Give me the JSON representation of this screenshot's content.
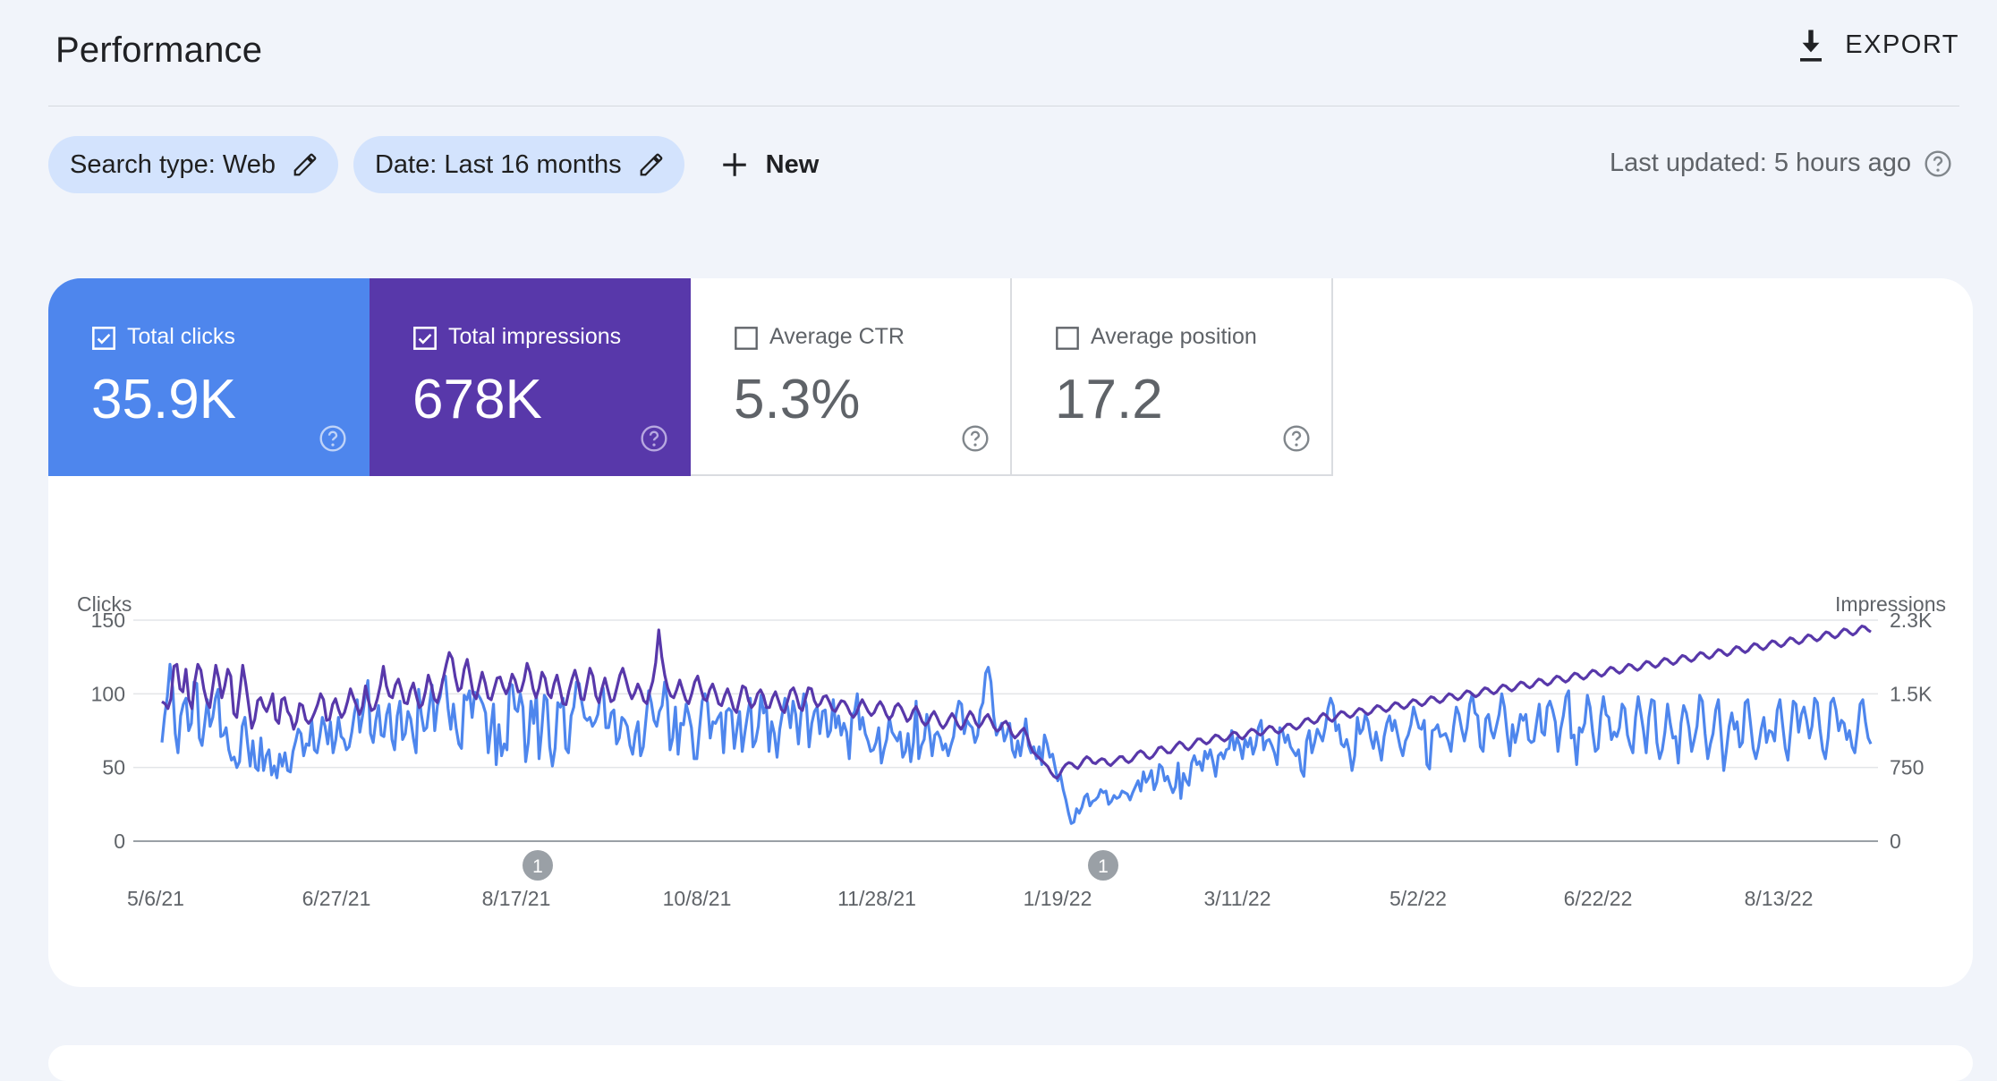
{
  "header": {
    "title": "Performance",
    "export_label": "EXPORT"
  },
  "filters": {
    "chips": [
      {
        "label": "Search type: Web"
      },
      {
        "label": "Date: Last 16 months"
      }
    ],
    "new_label": "New",
    "last_updated": "Last updated: 5 hours ago"
  },
  "metrics": [
    {
      "label": "Total clicks",
      "value": "35.9K",
      "checked": true,
      "color": "#4e86ed"
    },
    {
      "label": "Total impressions",
      "value": "678K",
      "checked": true,
      "color": "#5838aa"
    },
    {
      "label": "Average CTR",
      "value": "5.3%",
      "checked": false
    },
    {
      "label": "Average position",
      "value": "17.2",
      "checked": false
    }
  ],
  "chart_data": {
    "type": "line",
    "left_axis_label": "Clicks",
    "right_axis_label": "Impressions",
    "left_ticks": [
      "150",
      "100",
      "50",
      "0"
    ],
    "right_ticks": [
      "2.3K",
      "1.5K",
      "750",
      "0"
    ],
    "ylim_left": [
      0,
      150
    ],
    "ylim_right": [
      0,
      2250
    ],
    "x_tick_labels": [
      "5/6/21",
      "6/27/21",
      "8/17/21",
      "10/8/21",
      "11/28/21",
      "1/19/22",
      "3/11/22",
      "5/2/22",
      "6/22/22",
      "8/13/22"
    ],
    "grid": true,
    "annotations": [
      {
        "x": "8/17/21",
        "label": "1"
      },
      {
        "x": "1/19/22",
        "label": "1"
      }
    ],
    "series": [
      {
        "name": "Clicks",
        "axis": "left",
        "color": "#4e86ed",
        "x_start": 0,
        "x_step": 1,
        "values": [
          67,
          85,
          98,
          120,
          104,
          73,
          60,
          85,
          93,
          97,
          75,
          80,
          108,
          107,
          70,
          65,
          80,
          96,
          78,
          84,
          97,
          103,
          71,
          72,
          77,
          62,
          55,
          57,
          50,
          54,
          78,
          84,
          67,
          51,
          68,
          50,
          48,
          70,
          48,
          58,
          62,
          45,
          51,
          43,
          59,
          51,
          60,
          48,
          47,
          61,
          68,
          76,
          73,
          58,
          66,
          65,
          82,
          62,
          60,
          71,
          84,
          78,
          66,
          81,
          60,
          69,
          84,
          71,
          69,
          62,
          64,
          74,
          87,
          96,
          74,
          85,
          98,
          109,
          73,
          67,
          82,
          92,
          72,
          71,
          86,
          93,
          69,
          62,
          85,
          95,
          69,
          73,
          88,
          83,
          70,
          60,
          103,
          86,
          75,
          77,
          92,
          106,
          75,
          92,
          98,
          110,
          112,
          90,
          76,
          93,
          77,
          66,
          63,
          99,
          96,
          102,
          84,
          101,
          100,
          97,
          93,
          87,
          60,
          77,
          93,
          52,
          79,
          58,
          66,
          62,
          107,
          106,
          90,
          88,
          100,
          91,
          54,
          67,
          95,
          80,
          100,
          56,
          75,
          99,
          96,
          64,
          51,
          63,
          94,
          91,
          97,
          63,
          60,
          85,
          91,
          108,
          107,
          94,
          84,
          82,
          84,
          78,
          81,
          86,
          100,
          104,
          77,
          77,
          87,
          89,
          66,
          70,
          84,
          82,
          78,
          65,
          59,
          73,
          81,
          58,
          64,
          83,
          102,
          94,
          82,
          78,
          88,
          92,
          108,
          95,
          62,
          70,
          91,
          59,
          80,
          79,
          93,
          86,
          77,
          56,
          56,
          76,
          95,
          100,
          94,
          70,
          81,
          80,
          84,
          87,
          60,
          88,
          90,
          88,
          63,
          76,
          88,
          61,
          74,
          86,
          97,
          64,
          68,
          78,
          99,
          87,
          92,
          61,
          81,
          73,
          57,
          76,
          87,
          97,
          91,
          77,
          95,
          86,
          66,
          87,
          100,
          92,
          64,
          80,
          88,
          91,
          73,
          88,
          89,
          71,
          75,
          96,
          77,
          85,
          72,
          80,
          74,
          56,
          85,
          88,
          100,
          76,
          84,
          73,
          68,
          61,
          62,
          67,
          77,
          53,
          62,
          69,
          84,
          74,
          71,
          68,
          74,
          57,
          61,
          73,
          54,
          67,
          95,
          56,
          65,
          69,
          86,
          74,
          58,
          72,
          74,
          70,
          62,
          66,
          58,
          65,
          71,
          86,
          95,
          93,
          73,
          82,
          79,
          77,
          67,
          72,
          89,
          94,
          114,
          118,
          108,
          85,
          72,
          76,
          80,
          68,
          73,
          80,
          62,
          57,
          68,
          58,
          70,
          83,
          65,
          60,
          64,
          56,
          64,
          52,
          72,
          66,
          57,
          59,
          50,
          41,
          45,
          35,
          28,
          19,
          12,
          13,
          22,
          19,
          23,
          30,
          32,
          24,
          27,
          28,
          30,
          35,
          33,
          34,
          25,
          27,
          31,
          29,
          30,
          34,
          33,
          32,
          28,
          33,
          37,
          41,
          34,
          47,
          40,
          43,
          48,
          35,
          40,
          52,
          50,
          41,
          44,
          38,
          33,
          37,
          53,
          29,
          46,
          41,
          38,
          53,
          58,
          52,
          54,
          48,
          61,
          56,
          62,
          54,
          44,
          58,
          60,
          56,
          62,
          63,
          75,
          62,
          70,
          65,
          56,
          69,
          64,
          70,
          59,
          65,
          77,
          82,
          62,
          68,
          69,
          65,
          60,
          52,
          77,
          75,
          67,
          72,
          64,
          61,
          58,
          62,
          48,
          44,
          68,
          75,
          60,
          67,
          76,
          72,
          68,
          77,
          90,
          97,
          92,
          75,
          79,
          66,
          64,
          69,
          61,
          48,
          58,
          84,
          73,
          76,
          86,
          81,
          70,
          63,
          74,
          65,
          55,
          71,
          80,
          85,
          75,
          82,
          73,
          64,
          58,
          68,
          72,
          79,
          91,
          84,
          77,
          76,
          82,
          52,
          49,
          75,
          76,
          79,
          71,
          72,
          73,
          68,
          61,
          78,
          91,
          86,
          76,
          68,
          77,
          93,
          100,
          87,
          85,
          64,
          61,
          83,
          86,
          75,
          70,
          78,
          86,
          100,
          91,
          73,
          58,
          79,
          67,
          75,
          86,
          82,
          86,
          69,
          67,
          68,
          81,
          93,
          74,
          72,
          91,
          95,
          89,
          81,
          61,
          76,
          85,
          98,
          102,
          70,
          72,
          52,
          77,
          74,
          80,
          99,
          91,
          74,
          61,
          63,
          85,
          98,
          86,
          84,
          69,
          74,
          71,
          77,
          93,
          90,
          72,
          65,
          60,
          84,
          98,
          87,
          75,
          60,
          84,
          96,
          95,
          67,
          56,
          62,
          74,
          93,
          80,
          70,
          71,
          53,
          80,
          92,
          87,
          77,
          61,
          69,
          78,
          99,
          95,
          73,
          56,
          66,
          73,
          89,
          96,
          73,
          48,
          62,
          78,
          87,
          76,
          81,
          64,
          67,
          94,
          96,
          80,
          63,
          56,
          64,
          76,
          84,
          67,
          75,
          74,
          68,
          89,
          96,
          79,
          63,
          55,
          75,
          95,
          93,
          74,
          86,
          91,
          82,
          70,
          78,
          97,
          94,
          76,
          62,
          56,
          70,
          94,
          97,
          89,
          75,
          82,
          80,
          69,
          75,
          64,
          60,
          75,
          93,
          96,
          81,
          70,
          66
        ]
      },
      {
        "name": "Impressions",
        "axis": "right",
        "color": "#5838aa",
        "x_start": 0,
        "x_step": 1,
        "values": [
          1420,
          1400,
          1350,
          1450,
          1780,
          1800,
          1550,
          1520,
          1750,
          1440,
          1350,
          1630,
          1800,
          1740,
          1550,
          1420,
          1360,
          1580,
          1790,
          1650,
          1460,
          1580,
          1750,
          1680,
          1300,
          1260,
          1520,
          1790,
          1600,
          1380,
          1150,
          1240,
          1430,
          1460,
          1370,
          1320,
          1400,
          1500,
          1240,
          1200,
          1440,
          1460,
          1320,
          1270,
          1140,
          1220,
          1400,
          1380,
          1240,
          1200,
          1240,
          1310,
          1390,
          1500,
          1440,
          1230,
          1240,
          1390,
          1450,
          1340,
          1260,
          1310,
          1420,
          1550,
          1460,
          1380,
          1290,
          1370,
          1580,
          1430,
          1330,
          1350,
          1450,
          1590,
          1780,
          1580,
          1480,
          1460,
          1590,
          1650,
          1540,
          1410,
          1400,
          1530,
          1610,
          1480,
          1360,
          1390,
          1520,
          1690,
          1590,
          1450,
          1410,
          1520,
          1660,
          1800,
          1920,
          1860,
          1670,
          1530,
          1560,
          1750,
          1850,
          1680,
          1500,
          1450,
          1590,
          1720,
          1610,
          1460,
          1440,
          1550,
          1660,
          1670,
          1570,
          1500,
          1570,
          1700,
          1640,
          1520,
          1530,
          1640,
          1810,
          1720,
          1550,
          1460,
          1560,
          1720,
          1660,
          1500,
          1460,
          1600,
          1690,
          1550,
          1400,
          1390,
          1530,
          1650,
          1740,
          1620,
          1450,
          1440,
          1600,
          1760,
          1680,
          1480,
          1410,
          1550,
          1660,
          1540,
          1420,
          1440,
          1560,
          1690,
          1760,
          1650,
          1530,
          1450,
          1510,
          1600,
          1530,
          1430,
          1400,
          1520,
          1630,
          1820,
          2150,
          1880,
          1690,
          1560,
          1480,
          1460,
          1540,
          1640,
          1540,
          1440,
          1400,
          1500,
          1620,
          1680,
          1560,
          1450,
          1430,
          1540,
          1600,
          1510,
          1400,
          1380,
          1480,
          1550,
          1460,
          1350,
          1310,
          1450,
          1580,
          1560,
          1430,
          1360,
          1400,
          1500,
          1540,
          1480,
          1360,
          1360,
          1460,
          1520,
          1430,
          1340,
          1310,
          1420,
          1530,
          1560,
          1480,
          1360,
          1330,
          1450,
          1560,
          1550,
          1430,
          1370,
          1400,
          1470,
          1480,
          1420,
          1340,
          1320,
          1380,
          1430,
          1420,
          1370,
          1300,
          1260,
          1300,
          1380,
          1440,
          1380,
          1320,
          1280,
          1310,
          1380,
          1420,
          1370,
          1290,
          1240,
          1280,
          1370,
          1400,
          1360,
          1290,
          1220,
          1250,
          1330,
          1370,
          1300,
          1220,
          1180,
          1210,
          1280,
          1320,
          1260,
          1190,
          1150,
          1190,
          1250,
          1300,
          1250,
          1180,
          1140,
          1190,
          1260,
          1320,
          1280,
          1200,
          1160,
          1200,
          1260,
          1290,
          1230,
          1160,
          1120,
          1140,
          1200,
          1220,
          1170,
          1090,
          1050,
          1080,
          1120,
          1150,
          1080,
          980,
          910,
          880,
          850,
          820,
          790,
          760,
          700,
          660,
          640,
          680,
          740,
          780,
          800,
          790,
          760,
          740,
          780,
          830,
          860,
          840,
          800,
          790,
          820,
          840,
          830,
          790,
          770,
          800,
          830,
          860,
          860,
          820,
          800,
          820,
          860,
          900,
          920,
          900,
          860,
          840,
          860,
          900,
          950,
          960,
          930,
          900,
          900,
          940,
          980,
          1010,
          990,
          950,
          930,
          960,
          1000,
          1040,
          1040,
          1010,
          990,
          1010,
          1050,
          1080,
          1070,
          1040,
          1020,
          1040,
          1080,
          1110,
          1100,
          1060,
          1040,
          1070,
          1110,
          1140,
          1130,
          1100,
          1080,
          1100,
          1140,
          1170,
          1160,
          1120,
          1100,
          1120,
          1160,
          1190,
          1190,
          1160,
          1140,
          1160,
          1200,
          1240,
          1250,
          1220,
          1200,
          1220,
          1270,
          1300,
          1280,
          1240,
          1220,
          1250,
          1290,
          1320,
          1310,
          1280,
          1260,
          1280,
          1320,
          1350,
          1340,
          1310,
          1290,
          1310,
          1350,
          1380,
          1370,
          1340,
          1320,
          1340,
          1380,
          1410,
          1400,
          1370,
          1350,
          1370,
          1410,
          1440,
          1430,
          1400,
          1380,
          1400,
          1440,
          1470,
          1460,
          1430,
          1410,
          1430,
          1470,
          1500,
          1490,
          1460,
          1440,
          1460,
          1500,
          1530,
          1520,
          1490,
          1470,
          1490,
          1530,
          1560,
          1550,
          1520,
          1500,
          1520,
          1560,
          1590,
          1580,
          1550,
          1530,
          1550,
          1590,
          1620,
          1610,
          1580,
          1560,
          1580,
          1620,
          1650,
          1640,
          1610,
          1590,
          1610,
          1650,
          1680,
          1670,
          1640,
          1620,
          1640,
          1680,
          1710,
          1700,
          1670,
          1650,
          1670,
          1710,
          1740,
          1730,
          1700,
          1680,
          1700,
          1740,
          1770,
          1760,
          1730,
          1710,
          1730,
          1770,
          1800,
          1790,
          1760,
          1740,
          1760,
          1800,
          1830,
          1820,
          1790,
          1770,
          1790,
          1830,
          1860,
          1850,
          1820,
          1800,
          1820,
          1860,
          1890,
          1880,
          1850,
          1830,
          1850,
          1890,
          1920,
          1910,
          1880,
          1860,
          1880,
          1920,
          1950,
          1940,
          1910,
          1890,
          1910,
          1950,
          1980,
          1970,
          1940,
          1920,
          1940,
          1980,
          2010,
          2000,
          1970,
          1950,
          1970,
          2010,
          2040,
          2030,
          2000,
          1980,
          2000,
          2040,
          2070,
          2060,
          2030,
          2010,
          2030,
          2070,
          2100,
          2090,
          2060,
          2040,
          2060,
          2100,
          2130,
          2120,
          2090,
          2070,
          2090,
          2130,
          2160,
          2150,
          2120,
          2100,
          2120,
          2160,
          2190,
          2180,
          2150,
          2130
        ]
      }
    ]
  }
}
